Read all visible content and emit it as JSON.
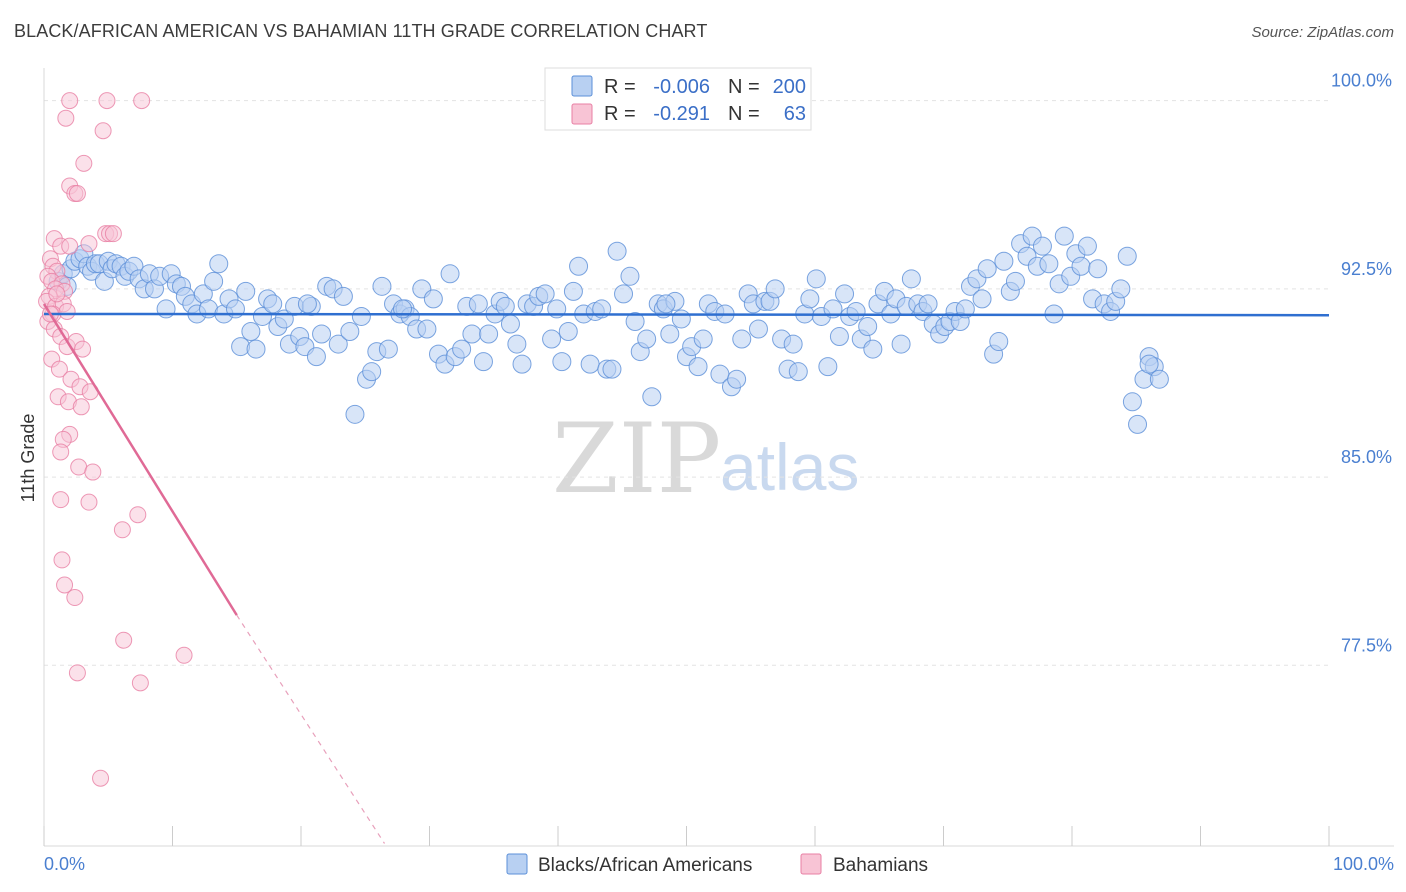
{
  "title": "BLACK/AFRICAN AMERICAN VS BAHAMIAN 11TH GRADE CORRELATION CHART",
  "source": "Source: ZipAtlas.com",
  "watermark": {
    "zip": "ZIP",
    "atlas": "atlas"
  },
  "legend": {
    "r_label": "R =",
    "n_label": "N =",
    "entries": [
      {
        "name": "Blacks/African Americans",
        "r": "-0.006",
        "n": "200",
        "color": "#5b8fd8",
        "fill": "#b8d0f2"
      },
      {
        "name": "Bahamians",
        "r": "-0.291",
        "n": "63",
        "color": "#e87fa4",
        "fill": "#f8c4d5"
      }
    ]
  },
  "chart_data": {
    "type": "scatter",
    "xlabel": "",
    "ylabel": "11th Grade",
    "xlim": [
      0,
      100
    ],
    "ylim": [
      70.3,
      101.3
    ],
    "x_tick_labels": [
      "0.0%",
      "100.0%"
    ],
    "y_ticks": [
      100.0,
      92.5,
      85.0,
      77.5
    ],
    "y_tick_labels": [
      "100.0%",
      "92.5%",
      "85.0%",
      "77.5%"
    ],
    "grid": true,
    "series": [
      {
        "name": "Blacks/African Americans",
        "color": "#5b8fd8",
        "trend": {
          "x": [
            0,
            100
          ],
          "y": [
            91.5,
            91.45
          ],
          "dashed_after": null
        },
        "points": [
          [
            1.1,
            92.8
          ],
          [
            1.5,
            93.1
          ],
          [
            1.8,
            92.6
          ],
          [
            2.1,
            93.3
          ],
          [
            2.4,
            93.6
          ],
          [
            2.8,
            93.7
          ],
          [
            3.1,
            93.9
          ],
          [
            3.4,
            93.4
          ],
          [
            3.7,
            93.2
          ],
          [
            4.0,
            93.5
          ],
          [
            4.3,
            93.5
          ],
          [
            4.7,
            92.8
          ],
          [
            5.0,
            93.6
          ],
          [
            5.3,
            93.3
          ],
          [
            5.6,
            93.5
          ],
          [
            6.0,
            93.4
          ],
          [
            6.3,
            93.0
          ],
          [
            6.6,
            93.2
          ],
          [
            7.0,
            93.4
          ],
          [
            7.4,
            92.9
          ],
          [
            7.8,
            92.5
          ],
          [
            8.2,
            93.1
          ],
          [
            8.6,
            92.5
          ],
          [
            9.0,
            93.0
          ],
          [
            9.5,
            91.7
          ],
          [
            9.9,
            93.1
          ],
          [
            10.3,
            92.7
          ],
          [
            10.7,
            92.6
          ],
          [
            11.0,
            92.2
          ],
          [
            11.5,
            91.9
          ],
          [
            11.9,
            91.5
          ],
          [
            12.4,
            92.3
          ],
          [
            12.8,
            91.7
          ],
          [
            13.2,
            92.8
          ],
          [
            13.6,
            93.5
          ],
          [
            14.0,
            91.5
          ],
          [
            14.4,
            92.1
          ],
          [
            14.9,
            91.7
          ],
          [
            15.3,
            90.2
          ],
          [
            15.7,
            92.4
          ],
          [
            16.1,
            90.8
          ],
          [
            16.5,
            90.1
          ],
          [
            17.0,
            91.4
          ],
          [
            17.4,
            92.1
          ],
          [
            17.8,
            91.9
          ],
          [
            18.2,
            91.0
          ],
          [
            18.7,
            91.3
          ],
          [
            19.1,
            90.3
          ],
          [
            19.5,
            91.8
          ],
          [
            19.9,
            90.6
          ],
          [
            20.3,
            90.2
          ],
          [
            20.8,
            91.8
          ],
          [
            21.2,
            89.8
          ],
          [
            21.6,
            90.7
          ],
          [
            22.0,
            92.6
          ],
          [
            22.5,
            92.5
          ],
          [
            22.9,
            90.3
          ],
          [
            23.3,
            92.2
          ],
          [
            23.8,
            90.8
          ],
          [
            24.2,
            87.5
          ],
          [
            24.7,
            91.4
          ],
          [
            25.1,
            88.9
          ],
          [
            25.5,
            89.2
          ],
          [
            25.9,
            90.0
          ],
          [
            26.3,
            92.6
          ],
          [
            26.8,
            90.1
          ],
          [
            27.2,
            91.9
          ],
          [
            27.7,
            91.5
          ],
          [
            28.1,
            91.7
          ],
          [
            28.5,
            91.4
          ],
          [
            29.0,
            90.9
          ],
          [
            29.4,
            92.5
          ],
          [
            29.8,
            90.9
          ],
          [
            30.3,
            92.1
          ],
          [
            30.7,
            89.9
          ],
          [
            31.2,
            89.5
          ],
          [
            31.6,
            93.1
          ],
          [
            32.0,
            89.8
          ],
          [
            32.5,
            90.1
          ],
          [
            32.9,
            91.8
          ],
          [
            33.3,
            90.7
          ],
          [
            33.8,
            91.9
          ],
          [
            34.2,
            89.6
          ],
          [
            34.6,
            90.7
          ],
          [
            35.1,
            91.5
          ],
          [
            35.5,
            92.0
          ],
          [
            35.9,
            91.8
          ],
          [
            36.3,
            91.1
          ],
          [
            36.8,
            90.3
          ],
          [
            37.2,
            89.5
          ],
          [
            37.6,
            91.9
          ],
          [
            38.1,
            91.8
          ],
          [
            38.5,
            92.2
          ],
          [
            39.0,
            92.3
          ],
          [
            39.5,
            90.5
          ],
          [
            39.9,
            91.7
          ],
          [
            40.3,
            89.6
          ],
          [
            40.8,
            90.8
          ],
          [
            41.2,
            92.4
          ],
          [
            41.6,
            93.4
          ],
          [
            42.0,
            91.5
          ],
          [
            42.5,
            89.5
          ],
          [
            42.9,
            91.6
          ],
          [
            43.4,
            91.7
          ],
          [
            43.8,
            89.3
          ],
          [
            44.2,
            89.3
          ],
          [
            44.6,
            94.0
          ],
          [
            45.1,
            92.3
          ],
          [
            45.6,
            93.0
          ],
          [
            46.0,
            91.2
          ],
          [
            46.4,
            90.0
          ],
          [
            46.9,
            90.5
          ],
          [
            47.3,
            88.2
          ],
          [
            47.8,
            91.9
          ],
          [
            48.2,
            91.7
          ],
          [
            48.7,
            90.7
          ],
          [
            49.1,
            92.0
          ],
          [
            49.6,
            91.3
          ],
          [
            50.0,
            89.8
          ],
          [
            50.4,
            90.2
          ],
          [
            50.9,
            89.4
          ],
          [
            51.3,
            90.5
          ],
          [
            51.7,
            91.9
          ],
          [
            52.2,
            91.6
          ],
          [
            52.6,
            89.1
          ],
          [
            53.0,
            91.5
          ],
          [
            53.5,
            88.6
          ],
          [
            53.9,
            88.9
          ],
          [
            54.3,
            90.5
          ],
          [
            54.8,
            92.3
          ],
          [
            55.2,
            91.9
          ],
          [
            55.6,
            90.9
          ],
          [
            56.1,
            92.0
          ],
          [
            56.5,
            92.0
          ],
          [
            56.9,
            92.5
          ],
          [
            57.4,
            90.5
          ],
          [
            57.9,
            89.3
          ],
          [
            58.3,
            90.3
          ],
          [
            58.7,
            89.2
          ],
          [
            59.2,
            91.5
          ],
          [
            59.6,
            92.1
          ],
          [
            60.1,
            92.9
          ],
          [
            60.5,
            91.4
          ],
          [
            61.0,
            89.4
          ],
          [
            61.4,
            91.7
          ],
          [
            61.9,
            90.6
          ],
          [
            62.3,
            92.3
          ],
          [
            62.7,
            91.4
          ],
          [
            63.2,
            91.6
          ],
          [
            63.6,
            90.5
          ],
          [
            64.1,
            91.0
          ],
          [
            64.5,
            90.1
          ],
          [
            64.9,
            91.9
          ],
          [
            65.4,
            92.4
          ],
          [
            65.9,
            91.5
          ],
          [
            66.3,
            92.1
          ],
          [
            66.7,
            90.3
          ],
          [
            67.1,
            91.8
          ],
          [
            67.5,
            92.9
          ],
          [
            68.0,
            91.9
          ],
          [
            68.4,
            91.6
          ],
          [
            68.8,
            91.9
          ],
          [
            69.2,
            91.1
          ],
          [
            69.7,
            90.7
          ],
          [
            70.1,
            91.0
          ],
          [
            70.5,
            91.2
          ],
          [
            70.9,
            91.6
          ],
          [
            71.3,
            91.2
          ],
          [
            71.7,
            91.7
          ],
          [
            72.1,
            92.6
          ],
          [
            72.6,
            92.9
          ],
          [
            73.0,
            92.1
          ],
          [
            73.4,
            93.3
          ],
          [
            73.9,
            89.9
          ],
          [
            74.3,
            90.4
          ],
          [
            74.7,
            93.6
          ],
          [
            75.2,
            92.4
          ],
          [
            75.6,
            92.8
          ],
          [
            76.0,
            94.3
          ],
          [
            76.5,
            93.8
          ],
          [
            76.9,
            94.6
          ],
          [
            77.3,
            93.4
          ],
          [
            77.7,
            94.2
          ],
          [
            78.2,
            93.5
          ],
          [
            78.6,
            91.5
          ],
          [
            79.0,
            92.7
          ],
          [
            79.4,
            94.6
          ],
          [
            79.9,
            93.0
          ],
          [
            80.3,
            93.9
          ],
          [
            80.7,
            93.4
          ],
          [
            81.2,
            94.2
          ],
          [
            81.6,
            92.1
          ],
          [
            82.0,
            93.3
          ],
          [
            82.5,
            91.9
          ],
          [
            83.0,
            91.6
          ],
          [
            83.4,
            92.0
          ],
          [
            83.8,
            92.5
          ],
          [
            84.3,
            93.8
          ],
          [
            84.7,
            88.0
          ],
          [
            85.1,
            87.1
          ],
          [
            85.6,
            88.9
          ],
          [
            86.0,
            89.8
          ],
          [
            86.4,
            89.4
          ],
          [
            86.8,
            88.9
          ],
          [
            20.5,
            91.9
          ],
          [
            27.9,
            91.7
          ],
          [
            48.4,
            91.9
          ],
          [
            86.0,
            89.5
          ]
        ]
      },
      {
        "name": "Bahamians",
        "color": "#e87fa4",
        "trend": {
          "x": [
            0,
            15,
            26.5
          ],
          "y": [
            91.9,
            79.5,
            70.4
          ],
          "dashed_after": 15
        },
        "points": [
          [
            2.0,
            100.0
          ],
          [
            4.9,
            100.0
          ],
          [
            7.6,
            100.0
          ],
          [
            1.7,
            99.3
          ],
          [
            4.6,
            98.8
          ],
          [
            3.1,
            97.5
          ],
          [
            2.0,
            96.6
          ],
          [
            2.4,
            96.3
          ],
          [
            2.6,
            96.3
          ],
          [
            4.8,
            94.7
          ],
          [
            5.1,
            94.7
          ],
          [
            5.4,
            94.7
          ],
          [
            0.8,
            94.5
          ],
          [
            1.3,
            94.2
          ],
          [
            2.0,
            94.2
          ],
          [
            3.5,
            94.3
          ],
          [
            0.5,
            93.7
          ],
          [
            0.7,
            93.4
          ],
          [
            1.0,
            93.2
          ],
          [
            0.3,
            93.0
          ],
          [
            0.6,
            92.8
          ],
          [
            1.4,
            92.7
          ],
          [
            0.9,
            92.5
          ],
          [
            1.6,
            92.4
          ],
          [
            0.4,
            92.2
          ],
          [
            0.2,
            92.0
          ],
          [
            0.9,
            91.8
          ],
          [
            1.5,
            91.9
          ],
          [
            0.7,
            91.5
          ],
          [
            1.8,
            91.6
          ],
          [
            0.3,
            91.2
          ],
          [
            0.8,
            90.9
          ],
          [
            1.3,
            90.6
          ],
          [
            1.8,
            90.2
          ],
          [
            2.5,
            90.4
          ],
          [
            3.0,
            90.1
          ],
          [
            0.6,
            89.7
          ],
          [
            1.2,
            89.3
          ],
          [
            2.1,
            88.9
          ],
          [
            2.8,
            88.6
          ],
          [
            3.6,
            88.4
          ],
          [
            1.1,
            88.2
          ],
          [
            1.9,
            88.0
          ],
          [
            2.9,
            87.8
          ],
          [
            2.0,
            86.7
          ],
          [
            1.5,
            86.5
          ],
          [
            1.3,
            86.0
          ],
          [
            2.7,
            85.4
          ],
          [
            3.8,
            85.2
          ],
          [
            1.3,
            84.1
          ],
          [
            3.5,
            84.0
          ],
          [
            7.3,
            83.5
          ],
          [
            6.1,
            82.9
          ],
          [
            1.4,
            81.7
          ],
          [
            1.6,
            80.7
          ],
          [
            2.4,
            80.2
          ],
          [
            6.2,
            78.5
          ],
          [
            10.9,
            77.9
          ],
          [
            2.6,
            77.2
          ],
          [
            7.5,
            76.8
          ],
          [
            4.4,
            73.0
          ],
          [
            1.0,
            92.3
          ],
          [
            0.5,
            91.5
          ]
        ]
      }
    ]
  }
}
